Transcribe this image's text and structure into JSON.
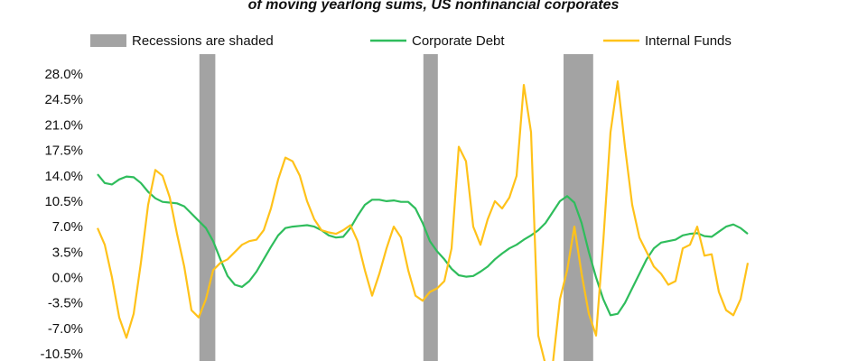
{
  "chart_data": {
    "type": "line",
    "title": "of moving yearlong sums, US nonfinancial corporates",
    "legend": {
      "recession": "Recessions are shaded"
    },
    "recession_color": "#a3a3a3",
    "recessions": [
      [
        14.1,
        16.3
      ],
      [
        45.1,
        47.1
      ],
      [
        64.5,
        68.6
      ]
    ],
    "ylim": [
      -11.5,
      29.5
    ],
    "yticks": [
      {
        "value": 28,
        "label": "28.0%"
      },
      {
        "value": 24.5,
        "label": "24.5%"
      },
      {
        "value": 21,
        "label": "21.0%"
      },
      {
        "value": 17.5,
        "label": "17.5%"
      },
      {
        "value": 14,
        "label": "14.0%"
      },
      {
        "value": 10.5,
        "label": "10.5%"
      },
      {
        "value": 7,
        "label": "7.0%"
      },
      {
        "value": 3.5,
        "label": "3.5%"
      },
      {
        "value": 0,
        "label": "0.0%"
      },
      {
        "value": -3.5,
        "label": "-3.5%"
      },
      {
        "value": -7,
        "label": "-7.0%"
      },
      {
        "value": -10.5,
        "label": "-10.5%"
      }
    ],
    "series": [
      {
        "name": "Corporate Debt",
        "color": "#2fbd5c",
        "values": [
          14.2,
          13.0,
          12.8,
          13.5,
          13.9,
          13.8,
          13.0,
          11.8,
          10.9,
          10.4,
          10.3,
          10.2,
          9.8,
          8.8,
          7.8,
          6.8,
          5.0,
          2.5,
          0.2,
          -1.0,
          -1.3,
          -0.5,
          0.8,
          2.5,
          4.2,
          5.8,
          6.8,
          7.0,
          7.1,
          7.2,
          7.0,
          6.5,
          5.8,
          5.5,
          5.6,
          6.8,
          8.5,
          10.0,
          10.7,
          10.7,
          10.5,
          10.6,
          10.4,
          10.4,
          9.5,
          7.5,
          5.0,
          3.6,
          2.5,
          1.2,
          0.3,
          0.1,
          0.2,
          0.8,
          1.5,
          2.5,
          3.3,
          4.0,
          4.5,
          5.2,
          5.8,
          6.5,
          7.5,
          9.0,
          10.5,
          11.2,
          10.3,
          7.5,
          3.5,
          0,
          -3.0,
          -5.2,
          -5.0,
          -3.5,
          -1.5,
          0.5,
          2.5,
          4.0,
          4.8,
          5.0,
          5.2,
          5.8,
          6.0,
          6.1,
          5.7,
          5.6,
          6.3,
          7.0,
          7.3,
          6.8,
          6.0
        ]
      },
      {
        "name": "Internal Funds",
        "color": "#ffc21a",
        "values": [
          6.8,
          4.5,
          0,
          -5.5,
          -8.3,
          -5,
          2,
          10,
          14.8,
          14.0,
          11.0,
          6.0,
          1.5,
          -4.5,
          -5.5,
          -3.0,
          1.0,
          2.0,
          2.5,
          3.5,
          4.5,
          5.0,
          5.2,
          6.5,
          9.5,
          13.5,
          16.5,
          16.0,
          14.0,
          10.5,
          8.0,
          6.5,
          6.2,
          6.0,
          6.5,
          7.2,
          5.0,
          1.0,
          -2.5,
          0.5,
          4.0,
          7.0,
          5.5,
          1.0,
          -2.5,
          -3.2,
          -2.0,
          -1.5,
          -0.5,
          4.0,
          18.0,
          16.0,
          7.0,
          4.5,
          8.0,
          10.5,
          9.5,
          11.0,
          14.0,
          26.5,
          20.0,
          -8.0,
          -12,
          -12,
          -3,
          1.0,
          7.0,
          0.5,
          -5,
          -8,
          5,
          20,
          27,
          18,
          10,
          5.5,
          3.5,
          1.5,
          0.5,
          -1.0,
          -0.5,
          4.0,
          4.5,
          7.0,
          3.0,
          3.2,
          -2.0,
          -4.5,
          -5.2,
          -3,
          2.0
        ]
      }
    ]
  }
}
